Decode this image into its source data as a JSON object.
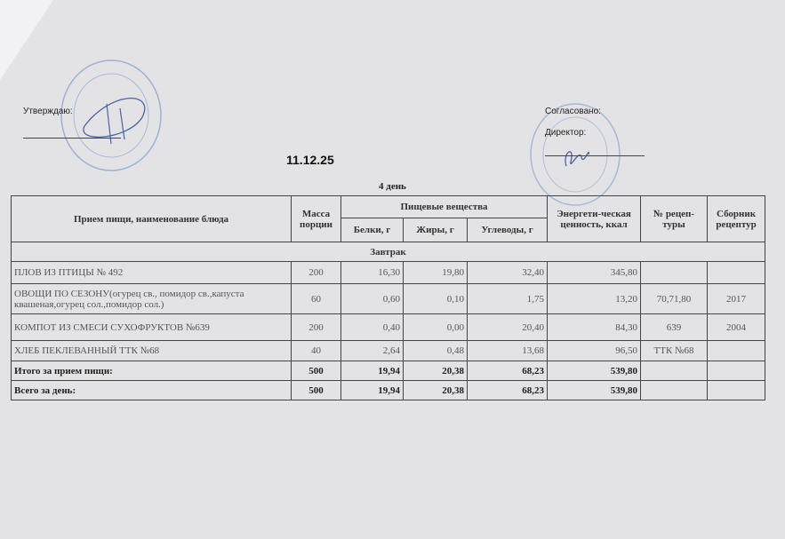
{
  "header": {
    "approve_label": "Утверждаю:",
    "agreed_label": "Согласовано:",
    "director_label": "Директор:",
    "date": "11.12.25",
    "day": "4 день"
  },
  "colors": {
    "stamp": "#6f8fc0",
    "background": "#e3e3e5"
  },
  "table": {
    "columns": {
      "name": "Прием пищи, наименование блюда",
      "mass": "Масса порции",
      "nutrients": "Пищевые вещества",
      "protein": "Белки, г",
      "fat": "Жиры, г",
      "carbs": "Углеводы, г",
      "energy": "Энергети-ческая ценность, ккал",
      "recipe": "№ рецеп-туры",
      "collection": "Сборник рецептур"
    },
    "section": "Завтрак",
    "rows": [
      {
        "name": "ПЛОВ ИЗ ПТИЦЫ № 492",
        "mass": "200",
        "protein": "16,30",
        "fat": "19,80",
        "carbs": "32,40",
        "energy": "345,80",
        "recipe": "",
        "collection": ""
      },
      {
        "name": "ОВОЩИ ПО СЕЗОНУ(огурец св., помидор св.,капуста квашеная,огурец сол.,помидор сол.)",
        "mass": "60",
        "protein": "0,60",
        "fat": "0,10",
        "carbs": "1,75",
        "energy": "13,20",
        "recipe": "70,71,80",
        "collection": "2017"
      },
      {
        "name": "КОМПОТ ИЗ СМЕСИ СУХОФРУКТОВ №639",
        "mass": "200",
        "protein": "0,40",
        "fat": "0,00",
        "carbs": "20,40",
        "energy": "84,30",
        "recipe": "639",
        "collection": "2004"
      },
      {
        "name": "ХЛЕБ ПЕКЛЕВАННЫЙ ТТК №68",
        "mass": "40",
        "protein": "2,64",
        "fat": "0,48",
        "carbs": "13,68",
        "energy": "96,50",
        "recipe": "ТТК №68",
        "collection": ""
      }
    ],
    "totals": [
      {
        "name": "Итого за прием пищи:",
        "mass": "500",
        "protein": "19,94",
        "fat": "20,38",
        "carbs": "68,23",
        "energy": "539,80"
      },
      {
        "name": "Всего за день:",
        "mass": "500",
        "protein": "19,94",
        "fat": "20,38",
        "carbs": "68,23",
        "energy": "539,80"
      }
    ]
  }
}
